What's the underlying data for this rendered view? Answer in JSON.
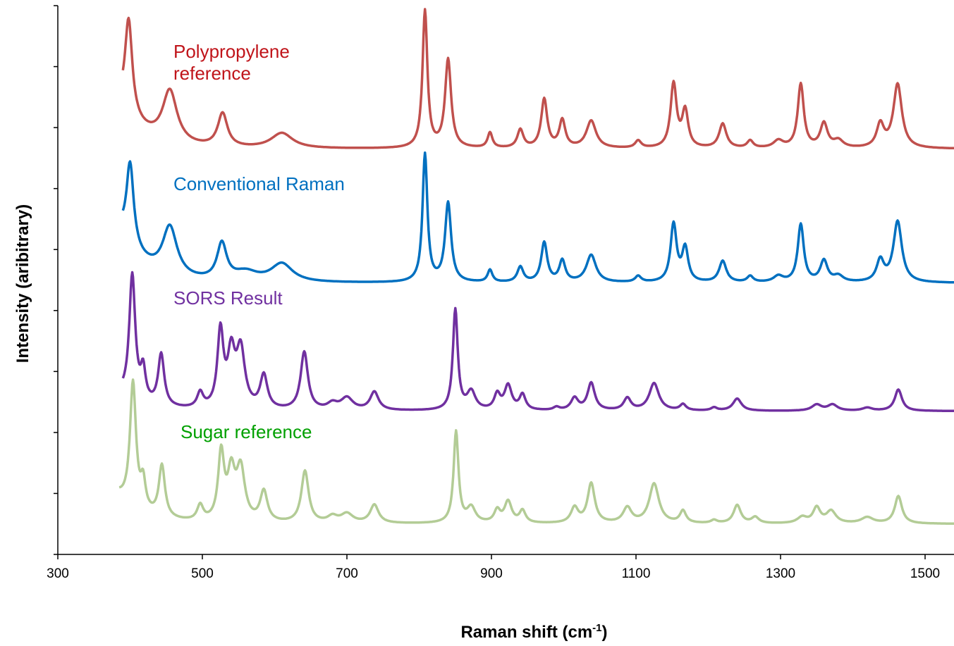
{
  "chart_data": {
    "type": "line",
    "xlabel": "Raman shift (cm",
    "xlabel_sup": "-1",
    "xlabel_end": ")",
    "ylabel": "Intensity (aribitrary)",
    "xlim": [
      300,
      1540
    ],
    "ylim": [
      0,
      9
    ],
    "x_ticks": [
      300,
      500,
      700,
      900,
      1100,
      1300,
      1500
    ],
    "y_tick_count": 9,
    "y_tick_labels_shown": false,
    "grid": false,
    "legend": "inline labels",
    "series": [
      {
        "name": "Polypropylene reference",
        "label_lines": [
          "Polypropylene",
          "reference"
        ],
        "color": "#c0504d",
        "label_color": "#c0141a",
        "baseline": 6.65,
        "start_x": 390,
        "start_y": 7.35,
        "peaks": [
          {
            "x": 398,
            "y": 1.55,
            "w": 6
          },
          {
            "x": 455,
            "y": 0.85,
            "w": 12
          },
          {
            "x": 528,
            "y": 0.55,
            "w": 8
          },
          {
            "x": 610,
            "y": 0.25,
            "w": 18
          },
          {
            "x": 808,
            "y": 2.25,
            "w": 4
          },
          {
            "x": 840,
            "y": 1.45,
            "w": 5
          },
          {
            "x": 898,
            "y": 0.25,
            "w": 4
          },
          {
            "x": 940,
            "y": 0.3,
            "w": 5
          },
          {
            "x": 973,
            "y": 0.8,
            "w": 5
          },
          {
            "x": 998,
            "y": 0.45,
            "w": 5
          },
          {
            "x": 1038,
            "y": 0.45,
            "w": 8
          },
          {
            "x": 1103,
            "y": 0.12,
            "w": 5
          },
          {
            "x": 1152,
            "y": 1.05,
            "w": 5
          },
          {
            "x": 1168,
            "y": 0.6,
            "w": 5
          },
          {
            "x": 1220,
            "y": 0.4,
            "w": 6
          },
          {
            "x": 1258,
            "y": 0.12,
            "w": 5
          },
          {
            "x": 1297,
            "y": 0.12,
            "w": 8
          },
          {
            "x": 1328,
            "y": 1.05,
            "w": 5
          },
          {
            "x": 1360,
            "y": 0.4,
            "w": 6
          },
          {
            "x": 1380,
            "y": 0.12,
            "w": 8
          },
          {
            "x": 1438,
            "y": 0.38,
            "w": 6
          },
          {
            "x": 1462,
            "y": 1.05,
            "w": 7
          }
        ]
      },
      {
        "name": "Conventional  Raman",
        "label_lines": [
          "Conventional  Raman"
        ],
        "color": "#0070c0",
        "label_color": "#0070c0",
        "baseline": 4.45,
        "start_x": 390,
        "start_y": 5.25,
        "peaks": [
          {
            "x": 400,
            "y": 1.35,
            "w": 6
          },
          {
            "x": 455,
            "y": 0.8,
            "w": 12
          },
          {
            "x": 527,
            "y": 0.6,
            "w": 8
          },
          {
            "x": 560,
            "y": 0.15,
            "w": 20
          },
          {
            "x": 610,
            "y": 0.3,
            "w": 18
          },
          {
            "x": 808,
            "y": 2.1,
            "w": 4
          },
          {
            "x": 840,
            "y": 1.3,
            "w": 5
          },
          {
            "x": 898,
            "y": 0.2,
            "w": 4
          },
          {
            "x": 940,
            "y": 0.25,
            "w": 5
          },
          {
            "x": 973,
            "y": 0.65,
            "w": 5
          },
          {
            "x": 998,
            "y": 0.35,
            "w": 5
          },
          {
            "x": 1038,
            "y": 0.45,
            "w": 8
          },
          {
            "x": 1103,
            "y": 0.1,
            "w": 5
          },
          {
            "x": 1152,
            "y": 0.95,
            "w": 5
          },
          {
            "x": 1168,
            "y": 0.55,
            "w": 5
          },
          {
            "x": 1220,
            "y": 0.35,
            "w": 6
          },
          {
            "x": 1258,
            "y": 0.1,
            "w": 5
          },
          {
            "x": 1297,
            "y": 0.1,
            "w": 8
          },
          {
            "x": 1328,
            "y": 0.95,
            "w": 5
          },
          {
            "x": 1360,
            "y": 0.35,
            "w": 6
          },
          {
            "x": 1380,
            "y": 0.1,
            "w": 8
          },
          {
            "x": 1438,
            "y": 0.35,
            "w": 6
          },
          {
            "x": 1462,
            "y": 1.0,
            "w": 7
          }
        ]
      },
      {
        "name": "SORS Result",
        "label_lines": [
          "SORS Result"
        ],
        "color": "#7030a0",
        "label_color": "#7030a0",
        "baseline": 2.35,
        "start_x": 390,
        "start_y": 2.6,
        "peaks": [
          {
            "x": 403,
            "y": 2.05,
            "w": 5
          },
          {
            "x": 418,
            "y": 0.5,
            "w": 4
          },
          {
            "x": 443,
            "y": 0.85,
            "w": 5
          },
          {
            "x": 497,
            "y": 0.25,
            "w": 5
          },
          {
            "x": 525,
            "y": 1.25,
            "w": 5
          },
          {
            "x": 540,
            "y": 0.85,
            "w": 6
          },
          {
            "x": 553,
            "y": 0.95,
            "w": 7
          },
          {
            "x": 585,
            "y": 0.55,
            "w": 6
          },
          {
            "x": 641,
            "y": 0.95,
            "w": 6
          },
          {
            "x": 680,
            "y": 0.1,
            "w": 8
          },
          {
            "x": 700,
            "y": 0.2,
            "w": 10
          },
          {
            "x": 738,
            "y": 0.3,
            "w": 7
          },
          {
            "x": 850,
            "y": 1.65,
            "w": 4
          },
          {
            "x": 872,
            "y": 0.3,
            "w": 7
          },
          {
            "x": 908,
            "y": 0.25,
            "w": 5
          },
          {
            "x": 923,
            "y": 0.4,
            "w": 6
          },
          {
            "x": 943,
            "y": 0.25,
            "w": 5
          },
          {
            "x": 990,
            "y": 0.05,
            "w": 5
          },
          {
            "x": 1015,
            "y": 0.2,
            "w": 6
          },
          {
            "x": 1038,
            "y": 0.45,
            "w": 6
          },
          {
            "x": 1088,
            "y": 0.2,
            "w": 6
          },
          {
            "x": 1125,
            "y": 0.45,
            "w": 8
          },
          {
            "x": 1165,
            "y": 0.1,
            "w": 5
          },
          {
            "x": 1208,
            "y": 0.05,
            "w": 5
          },
          {
            "x": 1240,
            "y": 0.2,
            "w": 7
          },
          {
            "x": 1350,
            "y": 0.1,
            "w": 8
          },
          {
            "x": 1372,
            "y": 0.1,
            "w": 8
          },
          {
            "x": 1420,
            "y": 0.05,
            "w": 8
          },
          {
            "x": 1463,
            "y": 0.35,
            "w": 6
          }
        ]
      },
      {
        "name": "Sugar reference",
        "label_lines": [
          "Sugar reference"
        ],
        "color": "#b3cc96",
        "label_color": "#00a000",
        "baseline": 0.5,
        "start_x": 385,
        "start_y": 0.95,
        "peaks": [
          {
            "x": 404,
            "y": 2.05,
            "w": 5
          },
          {
            "x": 418,
            "y": 0.45,
            "w": 4
          },
          {
            "x": 444,
            "y": 0.85,
            "w": 5
          },
          {
            "x": 497,
            "y": 0.25,
            "w": 5
          },
          {
            "x": 526,
            "y": 1.1,
            "w": 5
          },
          {
            "x": 540,
            "y": 0.75,
            "w": 6
          },
          {
            "x": 553,
            "y": 0.85,
            "w": 7
          },
          {
            "x": 585,
            "y": 0.5,
            "w": 6
          },
          {
            "x": 642,
            "y": 0.85,
            "w": 6
          },
          {
            "x": 680,
            "y": 0.1,
            "w": 8
          },
          {
            "x": 700,
            "y": 0.15,
            "w": 10
          },
          {
            "x": 738,
            "y": 0.3,
            "w": 7
          },
          {
            "x": 851,
            "y": 1.5,
            "w": 4
          },
          {
            "x": 872,
            "y": 0.25,
            "w": 7
          },
          {
            "x": 908,
            "y": 0.2,
            "w": 5
          },
          {
            "x": 923,
            "y": 0.35,
            "w": 6
          },
          {
            "x": 943,
            "y": 0.2,
            "w": 5
          },
          {
            "x": 1015,
            "y": 0.25,
            "w": 6
          },
          {
            "x": 1038,
            "y": 0.65,
            "w": 6
          },
          {
            "x": 1088,
            "y": 0.25,
            "w": 7
          },
          {
            "x": 1125,
            "y": 0.65,
            "w": 8
          },
          {
            "x": 1165,
            "y": 0.2,
            "w": 5
          },
          {
            "x": 1208,
            "y": 0.05,
            "w": 5
          },
          {
            "x": 1240,
            "y": 0.3,
            "w": 6
          },
          {
            "x": 1265,
            "y": 0.1,
            "w": 6
          },
          {
            "x": 1330,
            "y": 0.1,
            "w": 8
          },
          {
            "x": 1350,
            "y": 0.25,
            "w": 6
          },
          {
            "x": 1370,
            "y": 0.2,
            "w": 8
          },
          {
            "x": 1420,
            "y": 0.1,
            "w": 10
          },
          {
            "x": 1463,
            "y": 0.45,
            "w": 6
          }
        ]
      }
    ]
  }
}
